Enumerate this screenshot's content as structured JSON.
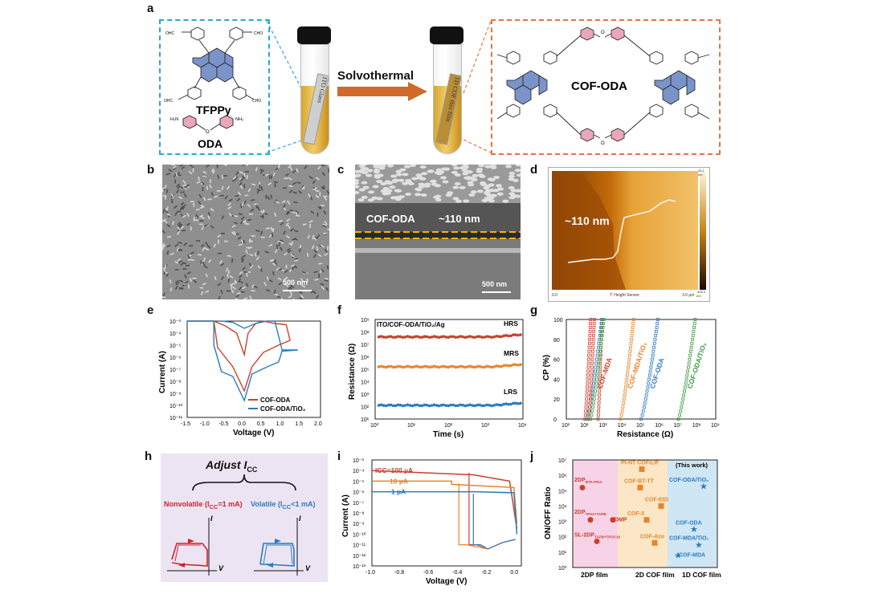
{
  "panels": {
    "a": "a",
    "b": "b",
    "c": "c",
    "d": "d",
    "e": "e",
    "f": "f",
    "g": "g",
    "h": "h",
    "i": "i",
    "j": "j"
  },
  "a": {
    "tfppy": "TFPPy",
    "oda": "ODA",
    "cho": "CHO",
    "ohc": "OHC",
    "nh2": "NH₂",
    "h2n": "H₂N",
    "o": "O",
    "tube1_label": "ITO Glass",
    "process": "Solvothermal",
    "tube2_label": "1D COF thin film",
    "product": "COF-ODA"
  },
  "b": {
    "scale": "500 nm"
  },
  "c": {
    "film": "COF-ODA",
    "thickness": "~110 nm",
    "scale": "500 nm"
  },
  "d": {
    "thickness": "~110 nm",
    "cb_top": "25.1 nm",
    "cb_bottom": "-400.3 nm",
    "axis_left": "0.0",
    "axis_mid": "T: Height Sensor",
    "axis_right": "3.0 µm"
  },
  "e": {
    "xlabel": "Voltage (V)",
    "ylabel": "Current (A)",
    "xticks": [
      "-1.5",
      "-1.0",
      "-0.5",
      "0.0",
      "0.5",
      "1.0",
      "1.5",
      "2.0"
    ],
    "yticks": [
      "10⁻³",
      "10⁻⁴",
      "10⁻⁵",
      "10⁻⁶",
      "10⁻⁷",
      "10⁻⁸",
      "10⁻⁹",
      "10⁻¹⁰",
      "10⁻¹¹"
    ],
    "legend": [
      "COF-ODA",
      "COF-ODA/TiO₂"
    ]
  },
  "f": {
    "title": "ITO/COF-ODA/TiO₂/Ag",
    "xlabel": "Time (s)",
    "ylabel": "Resistance (Ω)",
    "xticks": [
      "10⁰",
      "10¹",
      "10²",
      "10³",
      "10⁴"
    ],
    "yticks": [
      "10⁹",
      "10⁸",
      "10⁷",
      "10⁶",
      "10⁵",
      "10⁴",
      "10³",
      "10²",
      "10¹"
    ],
    "states": [
      "HRS",
      "MRS",
      "LRS"
    ]
  },
  "g": {
    "xlabel": "Resistance (Ω)",
    "ylabel": "CP (%)",
    "xticks": [
      "10¹",
      "10²",
      "10³",
      "10⁴",
      "10⁵",
      "10⁶",
      "10⁷",
      "10⁸",
      "10⁹"
    ],
    "yticks": [
      "100",
      "80",
      "60",
      "40",
      "20",
      "0"
    ],
    "series": [
      "COF-MDA",
      "COF-MDA/TiO₂",
      "COF-ODA",
      "COF-ODA/TiO₂"
    ]
  },
  "h": {
    "title": "Adjust I",
    "title_sub": "CC",
    "nonvolatile": "Nonvolatile (I",
    "nonvolatile_end": "=1 mA)",
    "volatile": "Volatile (I",
    "volatile_end": "<1 mA)",
    "sub": "CC",
    "i": "I",
    "v": "V"
  },
  "i": {
    "xlabel": "Voltage (V)",
    "ylabel": "Current (A)",
    "xticks": [
      "-1.0",
      "-0.8",
      "-0.6",
      "-0.4",
      "-0.2",
      "0.0"
    ],
    "yticks": [
      "10⁻³",
      "10⁻⁴",
      "10⁻⁵",
      "10⁻⁶",
      "10⁻⁷",
      "10⁻⁸",
      "10⁻⁹",
      "10⁻¹⁰",
      "10⁻¹¹",
      "10⁻¹²",
      "10⁻¹³"
    ],
    "labels": [
      "I",
      "CC",
      "=100 µA",
      "10 µA",
      "1 µA"
    ]
  },
  "j": {
    "ylabel": "ON/OFF Ratio",
    "yticks": [
      "10⁷",
      "10⁶",
      "10⁵",
      "10⁴",
      "10³",
      "10²",
      "10¹",
      "10⁰"
    ],
    "groups": [
      "2DP film",
      "2D COF film",
      "1D COF film"
    ],
    "this_work": "(This work)",
    "points": [
      {
        "name": "2DP",
        "sub": "BTA+PDA"
      },
      {
        "name": "2DP",
        "sub": "TPAZ+TAPB"
      },
      {
        "name": "2DMP",
        "sub": ""
      },
      {
        "name": "SL-2DP",
        "sub": "TAPB+TPOC16"
      },
      {
        "name": "PI-NT COF/LIF",
        "sub": ""
      },
      {
        "name": "COF-BT-TT",
        "sub": ""
      },
      {
        "name": "COF-EtD",
        "sub": ""
      },
      {
        "name": "COF-5",
        "sub": ""
      },
      {
        "name": "COF-Azo",
        "sub": ""
      },
      {
        "name": "COF-ODA/TiO₂",
        "sub": ""
      },
      {
        "name": "COF-ODA",
        "sub": ""
      },
      {
        "name": "COF-MDA/TiO₂",
        "sub": ""
      },
      {
        "name": "COF-MDA",
        "sub": ""
      }
    ]
  },
  "colors": {
    "oda_red": "#c8412b",
    "tio2_blue": "#2b7bbf",
    "orange": "#e8852a",
    "green": "#3c9a45",
    "cyan_dash": "#2aa7d8",
    "orange_dash": "#e27542"
  }
}
